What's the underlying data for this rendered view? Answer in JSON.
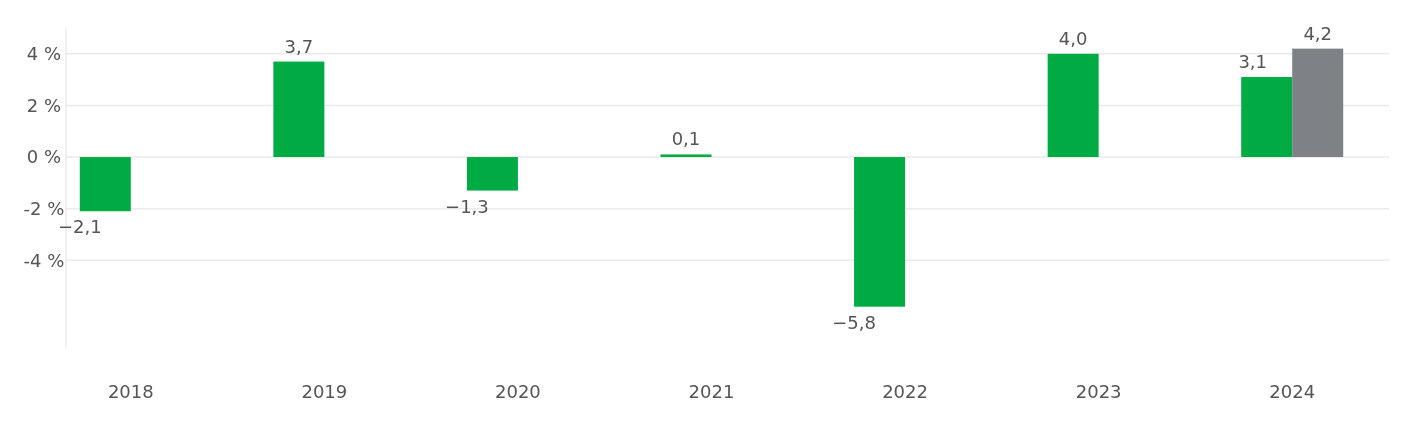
{
  "chart_data": {
    "type": "bar",
    "categories": [
      "2018",
      "2019",
      "2020",
      "2021",
      "2022",
      "2023",
      "2024"
    ],
    "series": [
      {
        "color": "#00ab44",
        "values": [
          -2.1,
          3.7,
          -1.3,
          0.1,
          -5.8,
          4.0,
          3.1
        ],
        "value_labels": [
          "−2,1",
          "3,7",
          "−1,3",
          "0,1",
          "−5,8",
          "4,0",
          "3,1"
        ]
      },
      {
        "color": "#7e8286",
        "values": [
          null,
          null,
          null,
          null,
          null,
          null,
          4.2
        ],
        "value_labels": [
          null,
          null,
          null,
          null,
          null,
          null,
          "4,2"
        ]
      }
    ],
    "yticks": [
      {
        "value": 4,
        "label": "4 %"
      },
      {
        "value": 2,
        "label": "2 %"
      },
      {
        "value": 0,
        "label": "0 %"
      },
      {
        "value": -2,
        "label": "-2 %"
      },
      {
        "value": -4,
        "label": "-4 %"
      }
    ],
    "ylim": [
      -7.4,
      5.0
    ],
    "grid": "y"
  }
}
